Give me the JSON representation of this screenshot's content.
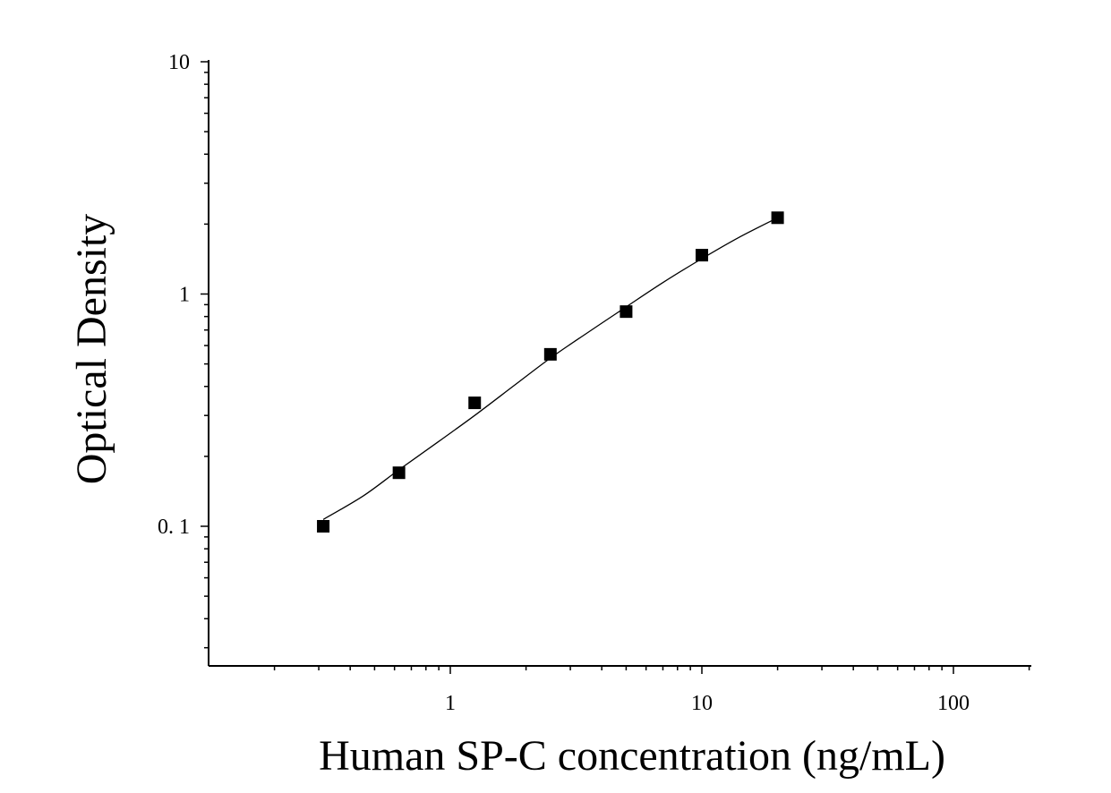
{
  "chart_data": {
    "type": "scatter",
    "title": "",
    "xlabel": "Human SP-C concentration (ng/mL)",
    "ylabel": "Optical Density",
    "x_scale": "log",
    "y_scale": "log",
    "xlim": [
      0.1,
      200
    ],
    "ylim": [
      0.028,
      10
    ],
    "x_ticks": [
      {
        "value": 1,
        "label": "1"
      },
      {
        "value": 10,
        "label": "10"
      },
      {
        "value": 100,
        "label": "100"
      }
    ],
    "y_ticks": [
      {
        "value": 0.1,
        "label": "0. 1"
      },
      {
        "value": 1,
        "label": "1"
      },
      {
        "value": 10,
        "label": "10"
      }
    ],
    "grid": false,
    "legend": "none",
    "series": [
      {
        "marker": "square",
        "color": "#000000",
        "x": [
          0.3125,
          0.625,
          1.25,
          2.5,
          5,
          10,
          20
        ],
        "y": [
          0.1,
          0.17,
          0.34,
          0.55,
          0.84,
          1.47,
          2.13
        ]
      }
    ],
    "fit_curve": {
      "color": "#000000",
      "x": [
        0.3125,
        0.45,
        0.625,
        0.9,
        1.25,
        1.8,
        2.5,
        3.5,
        5,
        7,
        10,
        14,
        20
      ],
      "y": [
        0.107,
        0.135,
        0.175,
        0.232,
        0.3,
        0.405,
        0.53,
        0.68,
        0.88,
        1.12,
        1.42,
        1.75,
        2.13
      ]
    }
  }
}
